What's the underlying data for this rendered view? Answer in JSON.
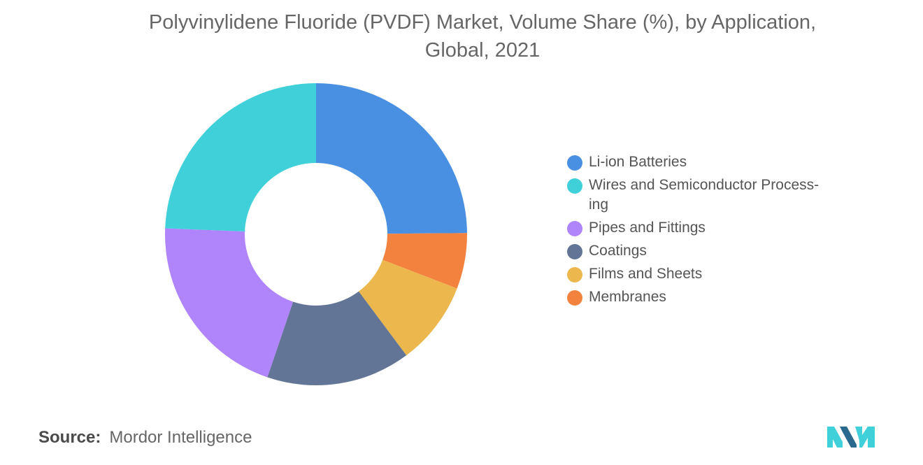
{
  "chart_data": {
    "type": "pie",
    "title_line1": "Polyvinylidene Fluoride (PVDF) Market, Volume Share (%), by Application,",
    "title_line2": "Global, 2021",
    "categories": [
      "Li-ion Batteries",
      "Wires and Semiconductor Process-ing",
      "Pipes and Fittings",
      "Coatings",
      "Films and Sheets",
      "Membranes"
    ],
    "legend_labels": [
      "Li-ion Batteries",
      "Wires and Semiconductor Process- ing",
      "Pipes and Fittings",
      "Coatings",
      "Films and Sheets",
      "Membranes"
    ],
    "values": [
      25,
      24.5,
      20.5,
      15.5,
      9,
      6
    ],
    "colors": [
      "#4a90e2",
      "#3fd0da",
      "#b084fb",
      "#627596",
      "#ecb74c",
      "#f4823f"
    ],
    "draw_order": [
      0,
      5,
      4,
      3,
      2,
      1
    ],
    "hole": "donut",
    "legend_position": "right"
  },
  "source": {
    "label": "Source:",
    "value": "Mordor Intelligence"
  },
  "logo": {
    "icon": "mordor-intelligence-logo-icon",
    "colors": [
      "#3fd0da",
      "#2a6a8e"
    ]
  }
}
